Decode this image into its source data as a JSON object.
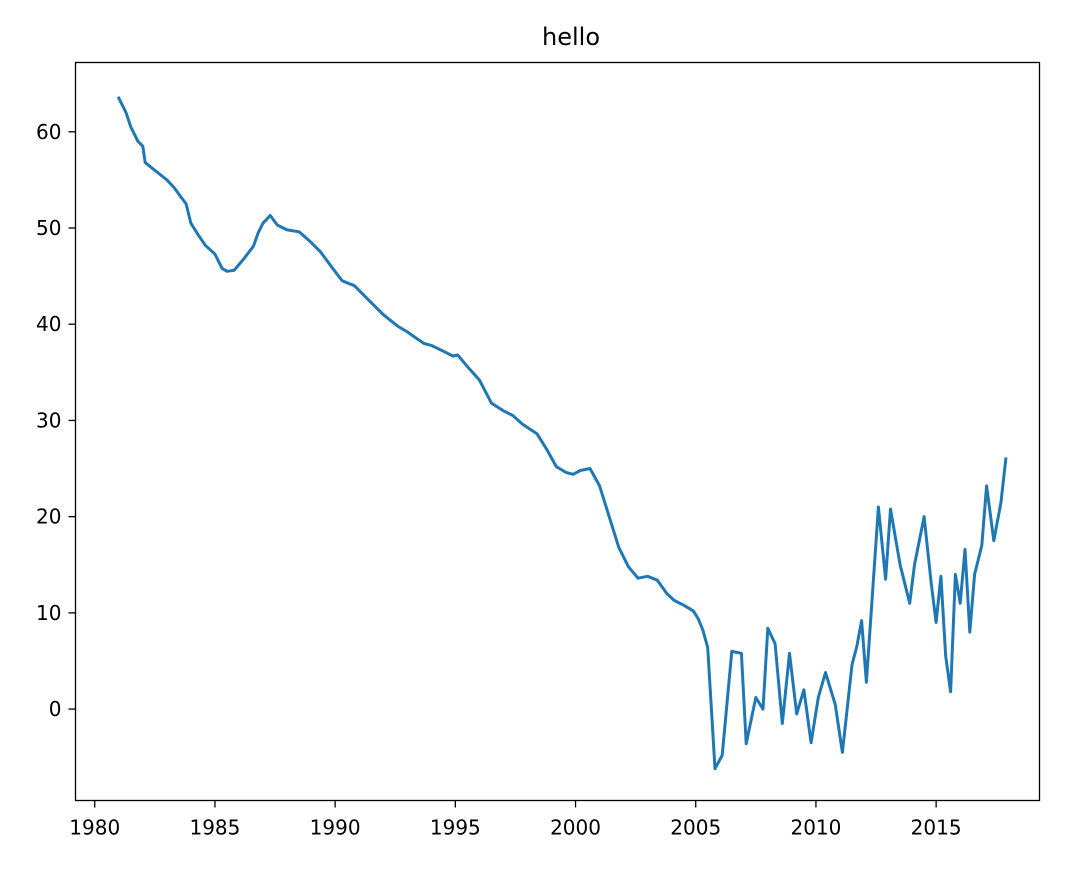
{
  "chart_data": {
    "type": "line",
    "title": "hello",
    "xlabel": "",
    "ylabel": "",
    "xlim": [
      1979.2,
      2019.3
    ],
    "ylim": [
      -9.5,
      67.2
    ],
    "xticks": [
      1980,
      1985,
      1990,
      1995,
      2000,
      2005,
      2010,
      2015
    ],
    "yticks": [
      0,
      10,
      20,
      30,
      40,
      50,
      60
    ],
    "grid": false,
    "legend": "none",
    "color": "#1f77b4",
    "series": [
      {
        "x": [
          1981.0,
          1981.3,
          1981.5,
          1981.8,
          1982.0,
          1982.1,
          1982.5,
          1982.8,
          1983.0,
          1983.3,
          1983.5,
          1983.8,
          1984.0,
          1984.3,
          1984.6,
          1985.0,
          1985.3,
          1985.5,
          1985.8,
          1986.2,
          1986.6,
          1986.8,
          1987.0,
          1987.3,
          1987.6,
          1988.0,
          1988.5,
          1989.0,
          1989.4,
          1989.9,
          1990.3,
          1990.8,
          1991.4,
          1992.0,
          1992.6,
          1993.0,
          1993.4,
          1993.7,
          1994.0,
          1994.5,
          1994.9,
          1995.1,
          1995.5,
          1996.0,
          1996.5,
          1997.0,
          1997.4,
          1997.8,
          1998.4,
          1998.8,
          1999.2,
          1999.6,
          1999.9,
          2000.2,
          2000.6,
          2001.0,
          2001.4,
          2001.8,
          2002.2,
          2002.6,
          2003.0,
          2003.4,
          2003.8,
          2004.1,
          2004.5,
          2004.9,
          2005.1,
          2005.3,
          2005.5,
          2005.8,
          2006.1,
          2006.5,
          2006.9,
          2007.1,
          2007.5,
          2007.8,
          2008.0,
          2008.3,
          2008.6,
          2008.9,
          2009.2,
          2009.5,
          2009.8,
          2010.1,
          2010.4,
          2010.8,
          2011.1,
          2011.5,
          2011.7,
          2011.9,
          2012.1,
          2012.6,
          2012.9,
          2013.1,
          2013.5,
          2013.9,
          2014.1,
          2014.5,
          2014.8,
          2015.0,
          2015.2,
          2015.4,
          2015.6,
          2015.8,
          2016.0,
          2016.2,
          2016.4,
          2016.6,
          2016.9,
          2017.1,
          2017.4,
          2017.7,
          2017.9
        ],
        "y": [
          63.5,
          62.0,
          60.5,
          59.0,
          58.5,
          56.8,
          56.0,
          55.4,
          55.0,
          54.2,
          53.5,
          52.5,
          50.5,
          49.3,
          48.2,
          47.3,
          45.8,
          45.5,
          45.6,
          46.8,
          48.1,
          49.5,
          50.5,
          51.3,
          50.3,
          49.8,
          49.6,
          48.5,
          47.5,
          45.8,
          44.5,
          44.0,
          42.5,
          41.0,
          39.8,
          39.2,
          38.5,
          38.0,
          37.8,
          37.2,
          36.7,
          36.8,
          35.6,
          34.2,
          31.8,
          31.0,
          30.5,
          29.6,
          28.6,
          27.0,
          25.2,
          24.6,
          24.4,
          24.8,
          25.0,
          23.2,
          20.0,
          16.8,
          14.8,
          13.6,
          13.8,
          13.4,
          12.0,
          11.3,
          10.8,
          10.2,
          9.4,
          8.2,
          6.4,
          -6.2,
          -4.8,
          6.0,
          5.8,
          -3.6,
          1.2,
          0.0,
          8.4,
          6.8,
          -1.5,
          5.8,
          -0.5,
          2.0,
          -3.5,
          1.2,
          3.8,
          0.5,
          -4.5,
          4.6,
          6.5,
          9.2,
          2.8,
          21.0,
          13.5,
          20.8,
          15.0,
          11.0,
          15.0,
          20.0,
          13.0,
          9.0,
          13.8,
          5.5,
          1.8,
          14.0,
          11.0,
          16.6,
          8.0,
          14.0,
          17.0,
          23.2,
          17.5,
          21.5,
          26.0
        ]
      }
    ]
  }
}
